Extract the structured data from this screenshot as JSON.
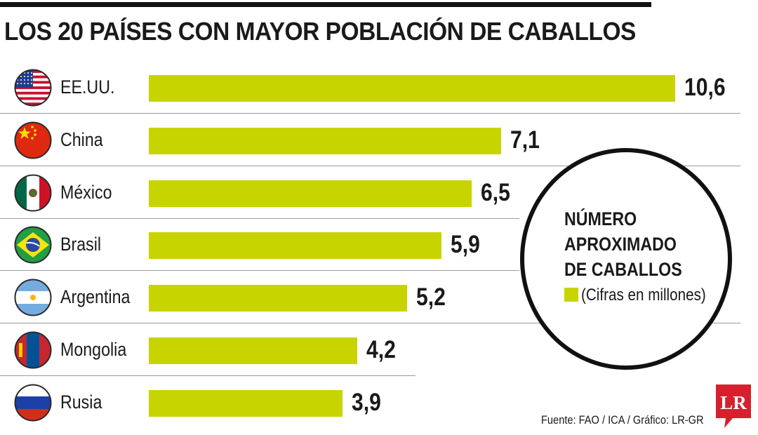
{
  "title": "LOS 20 PAÍSES CON MAYOR POBLACIÓN DE CABALLOS",
  "legend": {
    "lines": [
      "NÚMERO",
      "APROXIMADO",
      "DE CABALLOS"
    ],
    "note": "(Cifras en millones)"
  },
  "source": "Fuente: FAO / ICA / Gráfico: LR-GR",
  "logo_text": "LR",
  "colors": {
    "bar": "#c8d400",
    "text": "#1a1a1a",
    "logo": "#d6202d"
  },
  "chart_data": {
    "type": "bar",
    "orientation": "horizontal",
    "title": "LOS 20 PAÍSES CON MAYOR POBLACIÓN DE CABALLOS",
    "categories": [
      "EE.UU.",
      "China",
      "México",
      "Brasil",
      "Argentina",
      "Mongolia",
      "Rusia"
    ],
    "values": [
      10.6,
      7.1,
      6.5,
      5.9,
      5.2,
      4.2,
      3.9
    ],
    "value_labels": [
      "10,6",
      "7,1",
      "6,5",
      "5,9",
      "5,2",
      "4,2",
      "3,9"
    ],
    "flag_icons": [
      "usa-flag-icon",
      "china-flag-icon",
      "mexico-flag-icon",
      "brazil-flag-icon",
      "argentina-flag-icon",
      "mongolia-flag-icon",
      "russia-flag-icon"
    ],
    "xlim": [
      0,
      10.6
    ],
    "grid": false
  }
}
